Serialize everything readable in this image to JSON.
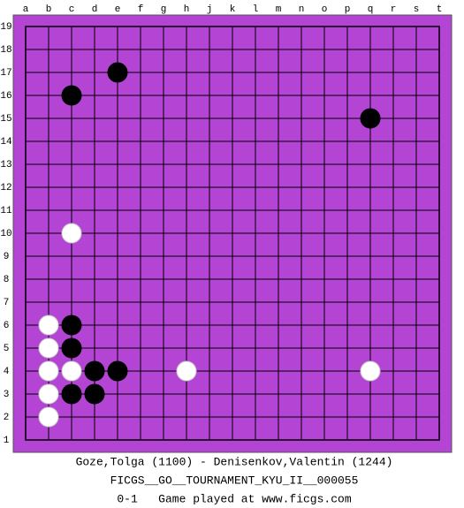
{
  "board": {
    "columns": [
      "a",
      "b",
      "c",
      "d",
      "e",
      "f",
      "g",
      "h",
      "j",
      "k",
      "l",
      "m",
      "n",
      "o",
      "p",
      "q",
      "r",
      "s",
      "t"
    ],
    "rows": [
      19,
      18,
      17,
      16,
      15,
      14,
      13,
      12,
      11,
      10,
      9,
      8,
      7,
      6,
      5,
      4,
      3,
      2,
      1
    ],
    "stones": [
      {
        "color": "black",
        "col": "e",
        "row": 17
      },
      {
        "color": "black",
        "col": "c",
        "row": 16
      },
      {
        "color": "black",
        "col": "q",
        "row": 15
      },
      {
        "color": "white",
        "col": "c",
        "row": 10
      },
      {
        "color": "white",
        "col": "b",
        "row": 6
      },
      {
        "color": "black",
        "col": "c",
        "row": 6
      },
      {
        "color": "white",
        "col": "b",
        "row": 5
      },
      {
        "color": "black",
        "col": "c",
        "row": 5
      },
      {
        "color": "white",
        "col": "b",
        "row": 4
      },
      {
        "color": "white",
        "col": "c",
        "row": 4
      },
      {
        "color": "black",
        "col": "d",
        "row": 4
      },
      {
        "color": "black",
        "col": "e",
        "row": 4
      },
      {
        "color": "white",
        "col": "h",
        "row": 4
      },
      {
        "color": "white",
        "col": "q",
        "row": 4
      },
      {
        "color": "white",
        "col": "b",
        "row": 3
      },
      {
        "color": "black",
        "col": "c",
        "row": 3
      },
      {
        "color": "black",
        "col": "d",
        "row": 3
      },
      {
        "color": "white",
        "col": "b",
        "row": 2
      }
    ]
  },
  "info": {
    "players": "Goze,Tolga (1100) - Denisenkov,Valentin (1244)",
    "event": "FICGS__GO__TOURNAMENT_KYU_II__000055",
    "result_line": "0-1   Game played at www.ficgs.com"
  }
}
